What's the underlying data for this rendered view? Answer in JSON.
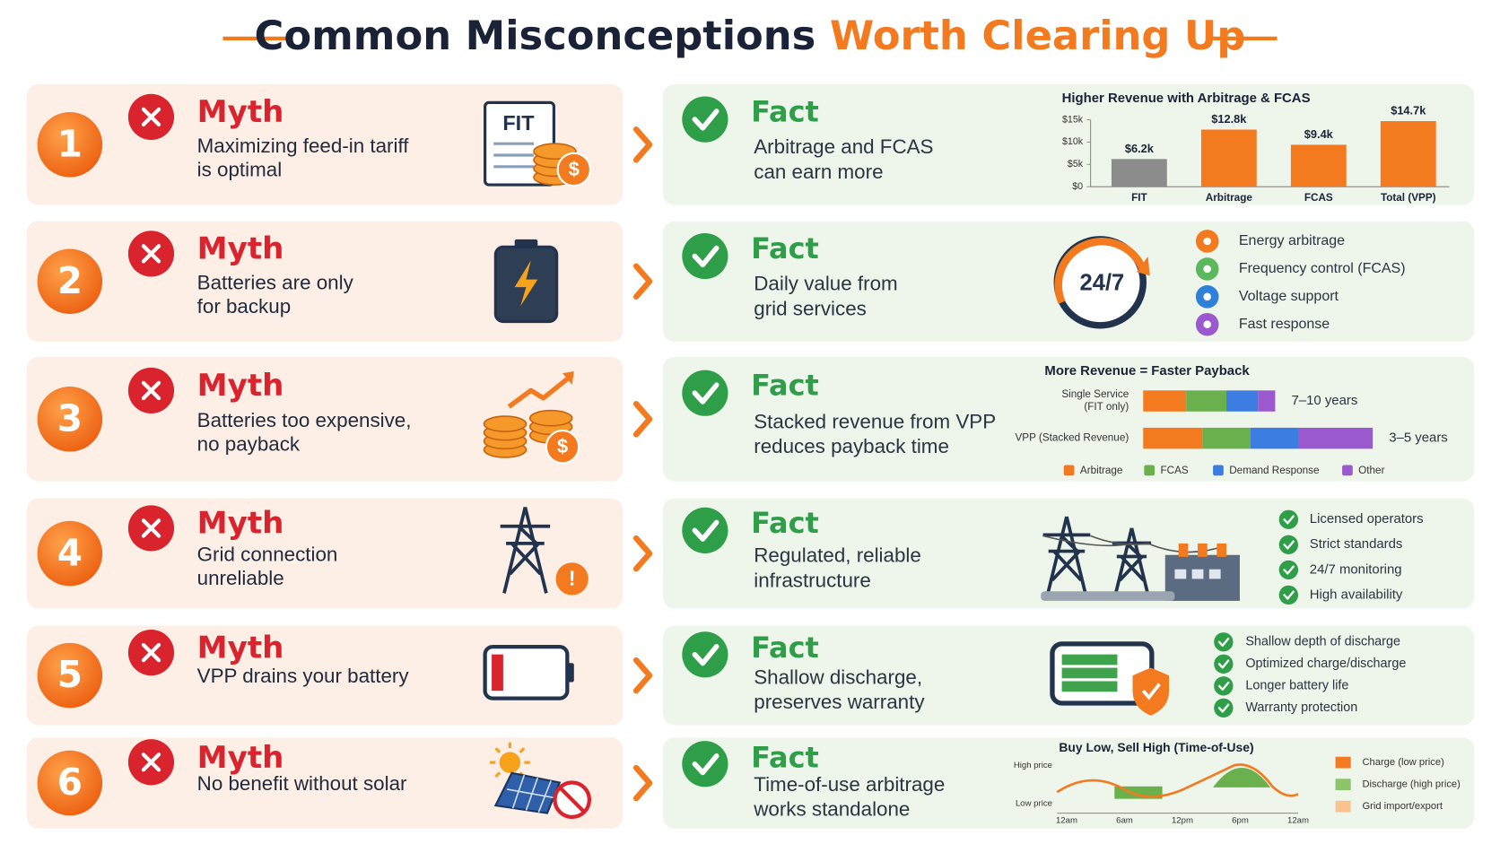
{
  "header": {
    "title_main": "Common Misconceptions",
    "title_accent": "Worth Clearing Up"
  },
  "rows": [
    {
      "number": "1",
      "myth_label": "Myth",
      "myth_lines": [
        "Maximizing feed-in tariff",
        "is optimal"
      ],
      "fact_label": "Fact",
      "fact_lines": [
        "Arbitrage and FCAS",
        "can earn more"
      ]
    },
    {
      "number": "2",
      "myth_label": "Myth",
      "myth_lines": [
        "Batteries are only",
        "for backup"
      ],
      "fact_label": "Fact",
      "fact_lines": [
        "Daily value from",
        "grid services"
      ]
    },
    {
      "number": "3",
      "myth_label": "Myth",
      "myth_lines": [
        "Batteries too expensive,",
        "no payback"
      ],
      "fact_label": "Fact",
      "fact_lines": [
        "Stacked revenue from VPP",
        "reduces payback time"
      ]
    },
    {
      "number": "4",
      "myth_label": "Myth",
      "myth_lines": [
        "Grid connection",
        "unreliable"
      ],
      "fact_label": "Fact",
      "fact_lines": [
        "Regulated, reliable",
        "infrastructure"
      ]
    },
    {
      "number": "5",
      "myth_label": "Myth",
      "myth_lines": [
        "VPP drains your battery"
      ],
      "fact_label": "Fact",
      "fact_lines": [
        "Shallow discharge,",
        "preserves warranty"
      ]
    },
    {
      "number": "6",
      "myth_label": "Myth",
      "myth_lines": [
        "No benefit without solar"
      ],
      "fact_label": "Fact",
      "fact_lines": [
        "Time-of-use arbitrage",
        "works standalone"
      ]
    }
  ],
  "icons": {
    "fit_label": "FIT",
    "coin_symbol": "$",
    "alert_symbol": "!",
    "clock_label": "24/7"
  },
  "revenue_chart": {
    "type": "bar",
    "title": "Higher Revenue with Arbitrage & FCAS",
    "categories": [
      "FIT",
      "Arbitrage",
      "FCAS",
      "Total (VPP)"
    ],
    "values": [
      6200,
      12800,
      9400,
      14700
    ],
    "value_labels": [
      "$6.2k",
      "$12.8k",
      "$9.4k",
      "$14.7k"
    ],
    "colors": [
      "#8c8c8c",
      "#f47a20",
      "#f47a20",
      "#f47a20"
    ],
    "ylim": [
      0,
      15000
    ],
    "yticks": [
      {
        "value": 0,
        "label": "$0"
      },
      {
        "value": 5000,
        "label": "$5k"
      },
      {
        "value": 10000,
        "label": "$10k"
      },
      {
        "value": 15000,
        "label": "$15k"
      }
    ]
  },
  "grid_services": {
    "items": [
      "Energy arbitrage",
      "Frequency control (FCAS)",
      "Voltage support",
      "Fast response"
    ],
    "colors": [
      "#f47a20",
      "#5cb85c",
      "#2f80d8",
      "#9b59d0"
    ]
  },
  "payback_chart": {
    "type": "stacked-bar",
    "title": "More Revenue = Faster Payback",
    "categories": [
      [
        "Single Service",
        "(FIT only)"
      ],
      [
        "VPP (Stacked Revenue)"
      ]
    ],
    "series": [
      {
        "name": "Arbitrage",
        "color": "#f47a20",
        "values": [
          45,
          62
        ]
      },
      {
        "name": "FCAS",
        "color": "#6ab04c",
        "values": [
          42,
          50
        ]
      },
      {
        "name": "Demand Response",
        "color": "#3b7de0",
        "values": [
          33,
          50
        ]
      },
      {
        "name": "Other",
        "color": "#9b59d0",
        "values": [
          18,
          78
        ]
      }
    ],
    "value_labels": [
      "7–10 years",
      "3–5 years"
    ]
  },
  "infrastructure": {
    "items": [
      "Licensed operators",
      "Strict standards",
      "24/7 monitoring",
      "High availability"
    ]
  },
  "battery_health": {
    "items": [
      "Shallow depth of discharge",
      "Optimized charge/discharge",
      "Longer battery life",
      "Warranty protection"
    ]
  },
  "tou_chart": {
    "title": "Buy Low, Sell High (Time-of-Use)",
    "y_labels": [
      "High price",
      "Low price"
    ],
    "x_labels": [
      "12am",
      "6am",
      "12pm",
      "6pm",
      "12am"
    ],
    "legend": [
      {
        "name": "Charge (low price)",
        "color": "#f47a20"
      },
      {
        "name": "Discharge (high price)",
        "color": "#8cc46a"
      },
      {
        "name": "Grid import/export",
        "color": "#f9c38f"
      }
    ]
  }
}
